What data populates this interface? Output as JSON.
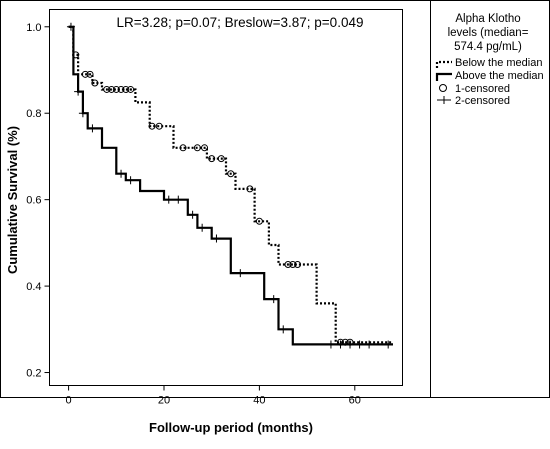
{
  "chart_data": {
    "type": "line",
    "subtype": "kaplan-meier-step",
    "annotation": "LR=3.28; p=0.07; Breslow=3.87; p=0.049",
    "xlabel": "Follow-up period (months)",
    "ylabel": "Cumulative Survival (%)",
    "xlim": [
      -4,
      70
    ],
    "ylim": [
      0.17,
      1.04
    ],
    "x_ticks": [
      0,
      20,
      40,
      60
    ],
    "y_ticks": [
      0.2,
      0.4,
      0.6,
      0.8,
      1.0
    ],
    "x_tick_labels": [
      "0",
      "20",
      "40",
      "60"
    ],
    "y_tick_labels": [
      "0.2",
      "0.4",
      "0.6",
      "0.8",
      "1.0"
    ],
    "grid": false,
    "legend": {
      "placement": "right",
      "title_lines": [
        "Alpha Klotho",
        "levels (median=",
        "574.4 pg/mL)"
      ],
      "entries": [
        {
          "label": "Below the median",
          "symbol": "dotted-step"
        },
        {
          "label": "Above the median",
          "symbol": "solid-step"
        },
        {
          "label": "1-censored",
          "symbol": "circle"
        },
        {
          "label": "2-censored",
          "symbol": "plus"
        }
      ]
    },
    "series": [
      {
        "name": "Below the median",
        "style": "dotted",
        "color": "#000000",
        "steps": [
          [
            0,
            1.0
          ],
          [
            1,
            0.935
          ],
          [
            2,
            0.89
          ],
          [
            5,
            0.87
          ],
          [
            7,
            0.855
          ],
          [
            14,
            0.825
          ],
          [
            17,
            0.77
          ],
          [
            22,
            0.72
          ],
          [
            29,
            0.695
          ],
          [
            33,
            0.66
          ],
          [
            35,
            0.625
          ],
          [
            39,
            0.55
          ],
          [
            42,
            0.495
          ],
          [
            44,
            0.45
          ],
          [
            52,
            0.36
          ],
          [
            56,
            0.27
          ],
          [
            68,
            0.27
          ]
        ],
        "censored": [
          1.5,
          3.5,
          4.5,
          5.5,
          8,
          9,
          10,
          11,
          12,
          13,
          17.5,
          19,
          24,
          27,
          28.5,
          30,
          32,
          34,
          38,
          40,
          46,
          47,
          48,
          57,
          58,
          59
        ]
      },
      {
        "name": "Above the median",
        "style": "solid",
        "color": "#000000",
        "steps": [
          [
            0,
            1.0
          ],
          [
            1,
            0.89
          ],
          [
            2,
            0.85
          ],
          [
            3,
            0.8
          ],
          [
            4,
            0.765
          ],
          [
            7,
            0.72
          ],
          [
            10,
            0.66
          ],
          [
            12,
            0.645
          ],
          [
            15,
            0.62
          ],
          [
            20,
            0.6
          ],
          [
            25,
            0.565
          ],
          [
            27,
            0.535
          ],
          [
            30,
            0.51
          ],
          [
            34,
            0.43
          ],
          [
            41,
            0.37
          ],
          [
            44,
            0.3
          ],
          [
            47,
            0.265
          ],
          [
            68,
            0.265
          ]
        ],
        "censored": [
          0.5,
          2,
          3,
          5,
          11,
          13,
          21,
          23,
          26,
          28,
          31,
          36,
          43,
          45,
          55,
          57,
          59,
          61,
          63,
          67
        ]
      }
    ]
  }
}
